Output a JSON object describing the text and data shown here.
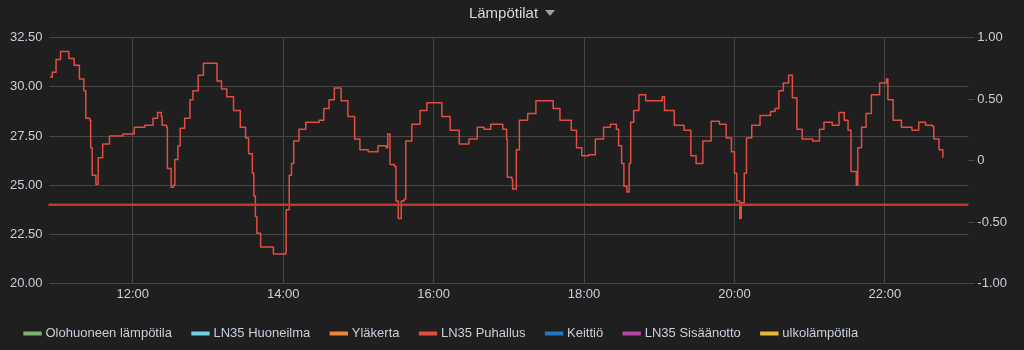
{
  "chart_data": {
    "type": "step",
    "title": "Lämpötilat",
    "series": [
      {
        "name": "Olohuoneen lämpötila",
        "color": "#7eb26d"
      },
      {
        "name": "LN35 Huoneilma",
        "color": "#6ed0e0"
      },
      {
        "name": "Yläkerta",
        "color": "#ef843c"
      },
      {
        "name": "LN35 Puhallus",
        "color": "#e24d42",
        "x": [
          10.9,
          10.93,
          10.98,
          11.04,
          11.1,
          11.15,
          11.22,
          11.29,
          11.35,
          11.375,
          11.43,
          11.44,
          11.46,
          11.51,
          11.54,
          11.6,
          11.69,
          11.87,
          12.02,
          12.16,
          12.27,
          12.33,
          12.38,
          12.39,
          12.45,
          12.46,
          12.51,
          12.54,
          12.56,
          12.6,
          12.63,
          12.69,
          12.76,
          12.8,
          12.87,
          12.94,
          13.05,
          13.12,
          13.18,
          13.25,
          13.34,
          13.43,
          13.5,
          13.54,
          13.59,
          13.61,
          13.63,
          13.65,
          13.7,
          13.85,
          13.87,
          14.03,
          14.04,
          14.08,
          14.11,
          14.14,
          14.21,
          14.3,
          14.48,
          14.54,
          14.61,
          14.68,
          14.77,
          14.86,
          14.95,
          15.02,
          15.13,
          15.26,
          15.37,
          15.39,
          15.42,
          15.48,
          15.5,
          15.53,
          15.57,
          15.61,
          15.63,
          15.71,
          15.82,
          15.91,
          16.02,
          16.11,
          16.22,
          16.34,
          16.47,
          16.58,
          16.67,
          16.76,
          16.92,
          16.97,
          16.98,
          17.04,
          17.05,
          17.1,
          17.14,
          17.25,
          17.36,
          17.59,
          17.68,
          17.83,
          17.9,
          17.97,
          18.06,
          18.15,
          18.26,
          18.35,
          18.43,
          18.46,
          18.5,
          18.53,
          18.57,
          18.6,
          18.62,
          18.66,
          18.73,
          18.82,
          19.04,
          19.07,
          19.2,
          19.33,
          19.42,
          19.49,
          19.56,
          19.58,
          19.69,
          19.8,
          19.89,
          19.96,
          20.0,
          20.03,
          20.07,
          20.09,
          20.13,
          20.16,
          20.23,
          20.34,
          20.48,
          20.54,
          20.59,
          20.65,
          20.72,
          20.77,
          20.83,
          20.9,
          21.04,
          21.13,
          21.19,
          21.3,
          21.39,
          21.46,
          21.51,
          21.55,
          21.62,
          21.64,
          21.69,
          21.75,
          21.82,
          21.93,
          22.02,
          22.04,
          22.11,
          22.22,
          22.36,
          22.45,
          22.54,
          22.63,
          22.65,
          22.72,
          22.77
        ],
        "values": [
          30.5,
          30.75,
          31.4,
          31.8,
          31.8,
          31.45,
          31.1,
          30.4,
          29.8,
          28.4,
          28.3,
          26.9,
          25.5,
          25.05,
          26.4,
          27.1,
          27.5,
          27.6,
          27.95,
          28.05,
          28.4,
          28.7,
          28.5,
          28.05,
          27.95,
          25.85,
          24.9,
          25.0,
          26.3,
          27.0,
          27.9,
          28.4,
          29.35,
          29.8,
          30.6,
          31.2,
          31.2,
          30.3,
          29.9,
          29.5,
          28.8,
          27.95,
          27.4,
          26.6,
          25.6,
          24.45,
          23.4,
          22.55,
          21.85,
          21.85,
          21.5,
          21.55,
          23.75,
          25.5,
          26.1,
          27.25,
          27.85,
          28.2,
          28.3,
          28.9,
          29.35,
          29.95,
          29.3,
          28.5,
          27.35,
          26.8,
          26.7,
          27.0,
          26.9,
          27.6,
          26.05,
          25.95,
          24.2,
          23.3,
          24.2,
          24.3,
          27.25,
          28.1,
          28.8,
          29.2,
          29.2,
          28.5,
          27.8,
          27.1,
          27.35,
          27.95,
          27.85,
          28.1,
          27.85,
          27.35,
          25.4,
          25.3,
          24.8,
          26.8,
          28.3,
          28.65,
          29.3,
          28.9,
          28.3,
          27.8,
          26.9,
          26.5,
          26.55,
          27.35,
          27.95,
          28.1,
          27.85,
          27.0,
          26.1,
          24.95,
          24.65,
          26.1,
          28.2,
          28.8,
          29.6,
          29.3,
          29.5,
          28.8,
          28.05,
          27.8,
          26.5,
          26.1,
          26.1,
          27.25,
          28.25,
          28.1,
          27.4,
          26.7,
          25.6,
          24.2,
          23.3,
          24.1,
          25.6,
          27.4,
          28.05,
          28.55,
          28.75,
          28.9,
          29.8,
          30.2,
          30.6,
          29.45,
          27.85,
          27.35,
          27.25,
          27.85,
          28.2,
          28.05,
          28.7,
          28.3,
          27.8,
          25.7,
          25.0,
          26.9,
          27.95,
          28.65,
          29.6,
          30.2,
          30.4,
          29.35,
          28.3,
          27.95,
          27.8,
          28.2,
          28.05,
          28.0,
          27.35,
          26.8,
          26.4
        ]
      },
      {
        "name": "Keittiö",
        "color": "#1f78c1"
      },
      {
        "name": "LN35 Sisäänotto",
        "color": "#ba43a9"
      },
      {
        "name": "ulkolämpötila",
        "color": "#eab839"
      }
    ],
    "xlim": [
      10.88,
      23.11
    ],
    "xticks": [
      {
        "value": 12,
        "label": "12:00"
      },
      {
        "value": 14,
        "label": "14:00"
      },
      {
        "value": 16,
        "label": "16:00"
      },
      {
        "value": 18,
        "label": "18:00"
      },
      {
        "value": 20,
        "label": "20:00"
      },
      {
        "value": 22,
        "label": "22:00"
      }
    ],
    "ylim": [
      20,
      32.5
    ],
    "yticks": [
      {
        "value": 20,
        "label": "20.00"
      },
      {
        "value": 22.5,
        "label": "22.50"
      },
      {
        "value": 25,
        "label": "25.00"
      },
      {
        "value": 27.5,
        "label": "27.50"
      },
      {
        "value": 30,
        "label": "30.00"
      },
      {
        "value": 32.5,
        "label": "32.50"
      }
    ],
    "y2lim": [
      -1,
      1
    ],
    "y2ticks": [
      {
        "value": -1,
        "label": "-1.00"
      },
      {
        "value": -0.5,
        "label": "-0.50"
      },
      0,
      {
        "value": 0.5,
        "label": "0.50"
      },
      {
        "value": 1,
        "label": "1.00"
      }
    ],
    "ref_lines": [
      {
        "axis": "y",
        "value": 24,
        "color": "#c4362c"
      }
    ],
    "grid": true,
    "legend": "bottom",
    "marker": "none",
    "line_style": "solid"
  }
}
